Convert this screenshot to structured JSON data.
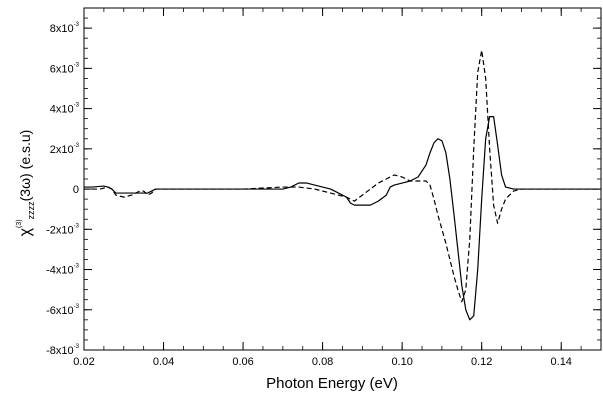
{
  "chart_data": {
    "type": "line",
    "xlabel": "Photon Energy (eV)",
    "ylabel": {
      "symbol": "χ",
      "superscript": "(3)",
      "subscript": "zzzz",
      "argument": "(3ω)",
      "unit": "(e.s.u)"
    },
    "xlim": [
      0.02,
      0.15
    ],
    "ylim": [
      -0.008,
      0.009
    ],
    "x_ticks": [
      {
        "value": 0.02,
        "label": "0.02"
      },
      {
        "value": 0.04,
        "label": "0.04"
      },
      {
        "value": 0.06,
        "label": "0.06"
      },
      {
        "value": 0.08,
        "label": "0.08"
      },
      {
        "value": 0.1,
        "label": "0.10"
      },
      {
        "value": 0.12,
        "label": "0.12"
      },
      {
        "value": 0.14,
        "label": "0.14"
      }
    ],
    "y_ticks": [
      {
        "value": 0.008,
        "mantissa": "8x10",
        "exponent": "-3"
      },
      {
        "value": 0.006,
        "mantissa": "6x10",
        "exponent": "-3"
      },
      {
        "value": 0.004,
        "mantissa": "4x10",
        "exponent": "-3"
      },
      {
        "value": 0.002,
        "mantissa": "2x10",
        "exponent": "-3"
      },
      {
        "value": 0,
        "mantissa": "0",
        "exponent": ""
      },
      {
        "value": -0.002,
        "mantissa": "-2x10",
        "exponent": "-3"
      },
      {
        "value": -0.004,
        "mantissa": "-4x10",
        "exponent": "-3"
      },
      {
        "value": -0.006,
        "mantissa": "-6x10",
        "exponent": "-3"
      },
      {
        "value": -0.008,
        "mantissa": "-8x10",
        "exponent": "-3"
      }
    ],
    "x_minor_step": 0.005,
    "y_minor_step": 0.0005,
    "grid": false,
    "series": [
      {
        "style": "solid",
        "color": "#000000",
        "x": [
          0.02,
          0.022,
          0.025,
          0.026,
          0.027,
          0.028,
          0.03,
          0.032,
          0.034,
          0.036,
          0.037,
          0.038,
          0.04,
          0.05,
          0.06,
          0.07,
          0.072,
          0.074,
          0.075,
          0.076,
          0.078,
          0.08,
          0.082,
          0.084,
          0.086,
          0.087,
          0.088,
          0.089,
          0.09,
          0.092,
          0.094,
          0.096,
          0.097,
          0.098,
          0.1,
          0.102,
          0.104,
          0.106,
          0.107,
          0.108,
          0.109,
          0.11,
          0.111,
          0.112,
          0.113,
          0.114,
          0.115,
          0.116,
          0.117,
          0.118,
          0.119,
          0.12,
          0.121,
          0.122,
          0.123,
          0.124,
          0.125,
          0.126,
          0.128,
          0.13,
          0.14,
          0.15
        ],
        "y": [
          0.0001,
          0.0001,
          0.00015,
          0.0001,
          0.0,
          -0.0002,
          -0.0002,
          -0.0002,
          -0.0002,
          -0.0002,
          -0.0001,
          0.0,
          0.0,
          0.0,
          0.0,
          0.0,
          0.0001,
          0.0003,
          0.0003,
          0.0003,
          0.0002,
          0.0001,
          0.0,
          -0.0002,
          -0.0004,
          -0.0007,
          -0.0008,
          -0.0008,
          -0.0008,
          -0.0008,
          -0.0006,
          -0.0003,
          0.0001,
          0.0002,
          0.0003,
          0.0004,
          0.0006,
          0.0012,
          0.0018,
          0.0023,
          0.0025,
          0.0024,
          0.0018,
          0.0005,
          -0.0012,
          -0.003,
          -0.0048,
          -0.006,
          -0.0065,
          -0.0063,
          -0.004,
          -0.0005,
          0.0025,
          0.0036,
          0.0036,
          0.0022,
          0.0007,
          0.0001,
          0.0,
          0.0,
          0.0,
          0.0
        ]
      },
      {
        "style": "dashed",
        "color": "#000000",
        "x": [
          0.02,
          0.024,
          0.026,
          0.027,
          0.028,
          0.03,
          0.032,
          0.034,
          0.035,
          0.036,
          0.037,
          0.038,
          0.04,
          0.06,
          0.07,
          0.074,
          0.078,
          0.082,
          0.086,
          0.088,
          0.09,
          0.092,
          0.094,
          0.096,
          0.098,
          0.1,
          0.102,
          0.104,
          0.106,
          0.107,
          0.108,
          0.109,
          0.11,
          0.111,
          0.112,
          0.113,
          0.114,
          0.115,
          0.116,
          0.117,
          0.118,
          0.119,
          0.12,
          0.121,
          0.122,
          0.123,
          0.124,
          0.125,
          0.126,
          0.128,
          0.13,
          0.14,
          0.15
        ],
        "y": [
          0.0,
          0.0,
          0.0001,
          0.0,
          -0.0003,
          -0.0004,
          -0.0003,
          -0.0001,
          -0.0001,
          -0.0003,
          -0.0002,
          0.0,
          0.0,
          0.0,
          0.0001,
          0.0001,
          0.0,
          -0.0002,
          -0.0004,
          -0.0006,
          -0.0003,
          0.0,
          0.0003,
          0.0005,
          0.0007,
          0.0006,
          0.0004,
          0.0004,
          0.0004,
          0.0002,
          -0.0005,
          -0.0013,
          -0.002,
          -0.0027,
          -0.0035,
          -0.0043,
          -0.005,
          -0.0056,
          -0.005,
          -0.0025,
          0.002,
          0.0058,
          0.0069,
          0.0055,
          0.002,
          -0.0008,
          -0.0017,
          -0.001,
          -0.0005,
          -0.0001,
          0.0,
          0.0,
          0.0
        ]
      }
    ]
  }
}
